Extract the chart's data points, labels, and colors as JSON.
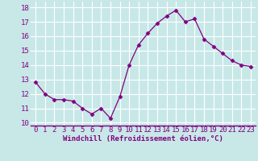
{
  "x": [
    0,
    1,
    2,
    3,
    4,
    5,
    6,
    7,
    8,
    9,
    10,
    11,
    12,
    13,
    14,
    15,
    16,
    17,
    18,
    19,
    20,
    21,
    22,
    23
  ],
  "y": [
    12.8,
    12.0,
    11.6,
    11.6,
    11.5,
    11.0,
    10.6,
    11.0,
    10.3,
    11.8,
    14.0,
    15.4,
    16.2,
    16.9,
    17.4,
    17.8,
    17.0,
    17.2,
    15.8,
    15.3,
    14.8,
    14.3,
    14.0,
    13.9
  ],
  "line_color": "#800080",
  "marker": "D",
  "marker_size": 2.5,
  "bg_color": "#c8e8e8",
  "grid_color": "#ffffff",
  "xlabel": "Windchill (Refroidissement éolien,°C)",
  "xlabel_fontsize": 6.5,
  "tick_fontsize": 6.5,
  "ylim": [
    9.8,
    18.4
  ],
  "yticks": [
    10,
    11,
    12,
    13,
    14,
    15,
    16,
    17,
    18
  ],
  "xlim": [
    -0.5,
    23.5
  ],
  "xticks": [
    0,
    1,
    2,
    3,
    4,
    5,
    6,
    7,
    8,
    9,
    10,
    11,
    12,
    13,
    14,
    15,
    16,
    17,
    18,
    19,
    20,
    21,
    22,
    23
  ]
}
